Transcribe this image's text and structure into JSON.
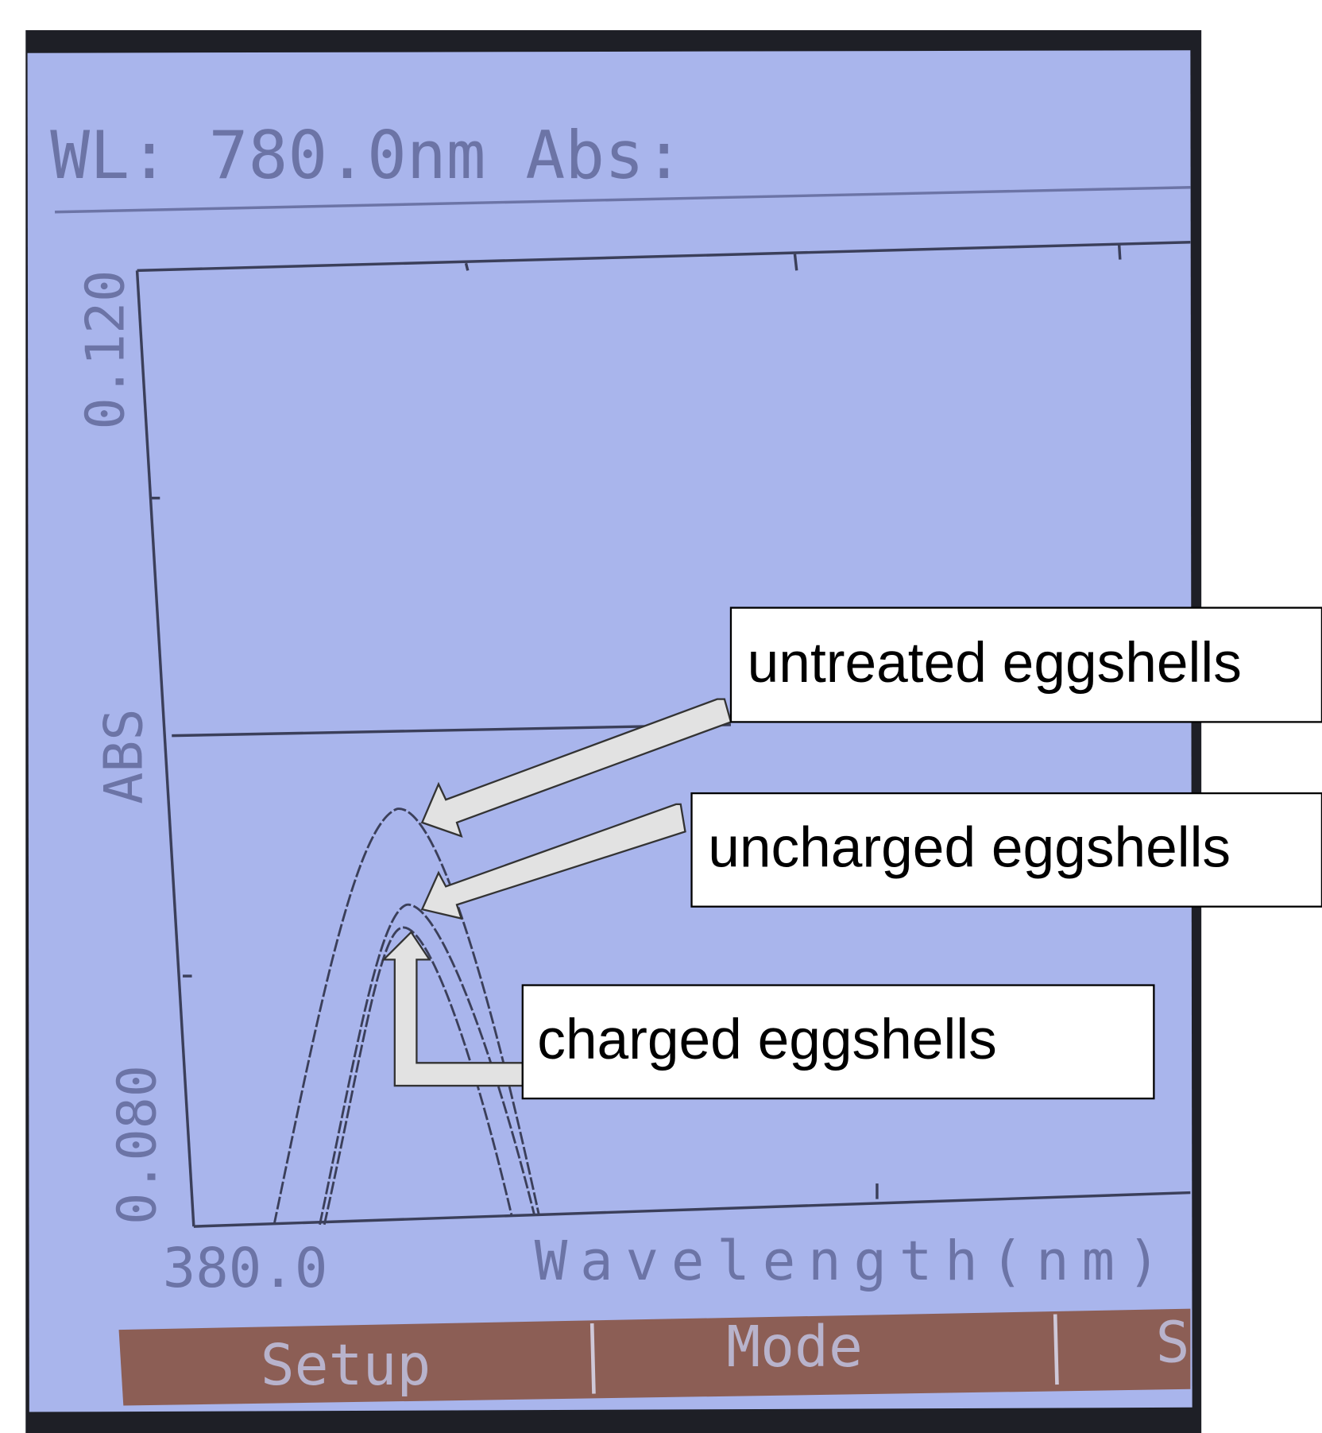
{
  "screen": {
    "header": "WL: 780.0nm Abs:",
    "y_axis": {
      "top": "0.120",
      "label": "ABS",
      "bottom": "0.080"
    },
    "x_axis": {
      "start": "380.0",
      "label": "Wavelength(nm)"
    },
    "buttons": [
      "Setup",
      "Mode",
      "S"
    ]
  },
  "annotations": [
    "untreated eggshells",
    "uncharged eggshells",
    "charged eggshells"
  ]
}
